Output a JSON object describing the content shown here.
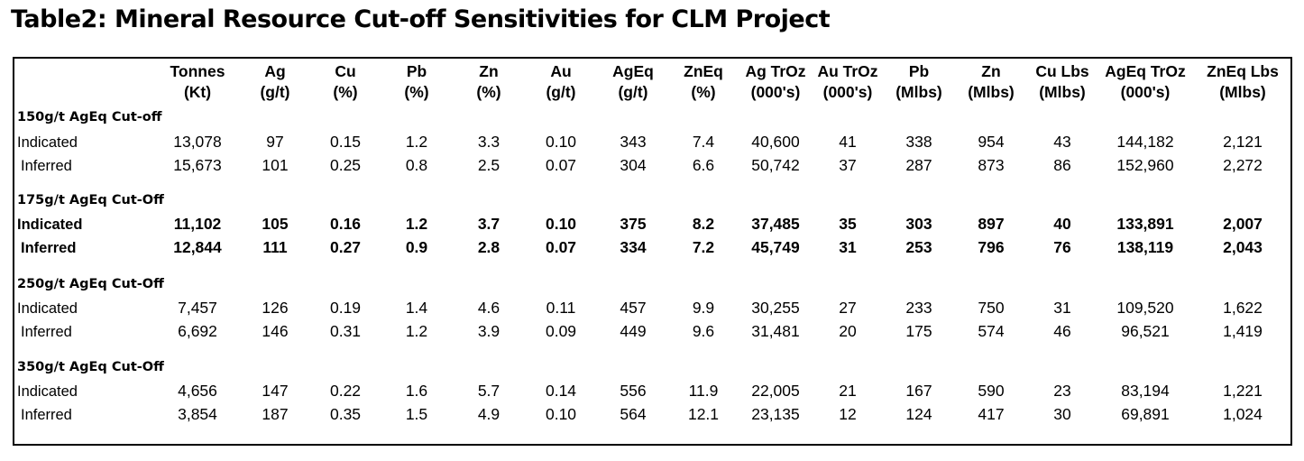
{
  "title": "Table2: Mineral Resource Cut-off Sensitivities for CLM Project",
  "columns": [
    {
      "name": "Tonnes",
      "unit": "(Kt)"
    },
    {
      "name": "Ag",
      "unit": "(g/t)"
    },
    {
      "name": "Cu",
      "unit": "(%)"
    },
    {
      "name": "Pb",
      "unit": "(%)"
    },
    {
      "name": "Zn",
      "unit": "(%)"
    },
    {
      "name": "Au",
      "unit": "(g/t)"
    },
    {
      "name": "AgEq",
      "unit": "(g/t)"
    },
    {
      "name": "ZnEq",
      "unit": "(%)"
    },
    {
      "name": "Ag TrOz",
      "unit": "(000's)"
    },
    {
      "name": "Au TrOz",
      "unit": "(000's)"
    },
    {
      "name": "Pb",
      "unit": "(Mlbs)"
    },
    {
      "name": "Zn",
      "unit": "(Mlbs)"
    },
    {
      "name": "Cu Lbs",
      "unit": "(Mlbs)"
    },
    {
      "name": "AgEq TrOz",
      "unit": "(000's)"
    },
    {
      "name": "ZnEq Lbs",
      "unit": "(Mlbs)"
    }
  ],
  "sections": [
    {
      "label": "150g/t AgEq Cut-off",
      "bold": false,
      "rows": [
        {
          "label": "Indicated",
          "values": [
            "13,078",
            "97",
            "0.15",
            "1.2",
            "3.3",
            "0.10",
            "343",
            "7.4",
            "40,600",
            "41",
            "338",
            "954",
            "43",
            "144,182",
            "2,121"
          ]
        },
        {
          "label": "Inferred",
          "values": [
            "15,673",
            "101",
            "0.25",
            "0.8",
            "2.5",
            "0.07",
            "304",
            "6.6",
            "50,742",
            "37",
            "287",
            "873",
            "86",
            "152,960",
            "2,272"
          ]
        }
      ]
    },
    {
      "label": "175g/t AgEq Cut-Off",
      "bold": true,
      "rows": [
        {
          "label": "Indicated",
          "values": [
            "11,102",
            "105",
            "0.16",
            "1.2",
            "3.7",
            "0.10",
            "375",
            "8.2",
            "37,485",
            "35",
            "303",
            "897",
            "40",
            "133,891",
            "2,007"
          ]
        },
        {
          "label": "Inferred",
          "values": [
            "12,844",
            "111",
            "0.27",
            "0.9",
            "2.8",
            "0.07",
            "334",
            "7.2",
            "45,749",
            "31",
            "253",
            "796",
            "76",
            "138,119",
            "2,043"
          ]
        }
      ]
    },
    {
      "label": "250g/t AgEq Cut-Off",
      "bold": false,
      "rows": [
        {
          "label": "Indicated",
          "values": [
            "7,457",
            "126",
            "0.19",
            "1.4",
            "4.6",
            "0.11",
            "457",
            "9.9",
            "30,255",
            "27",
            "233",
            "750",
            "31",
            "109,520",
            "1,622"
          ]
        },
        {
          "label": "Inferred",
          "values": [
            "6,692",
            "146",
            "0.31",
            "1.2",
            "3.9",
            "0.09",
            "449",
            "9.6",
            "31,481",
            "20",
            "175",
            "574",
            "46",
            "96,521",
            "1,419"
          ]
        }
      ]
    },
    {
      "label": "350g/t AgEq Cut-Off",
      "bold": false,
      "rows": [
        {
          "label": "Indicated",
          "values": [
            "4,656",
            "147",
            "0.22",
            "1.6",
            "5.7",
            "0.14",
            "556",
            "11.9",
            "22,005",
            "21",
            "167",
            "590",
            "23",
            "83,194",
            "1,221"
          ]
        },
        {
          "label": "Inferred",
          "values": [
            "3,854",
            "187",
            "0.35",
            "1.5",
            "4.9",
            "0.10",
            "564",
            "12.1",
            "23,135",
            "12",
            "124",
            "417",
            "30",
            "69,891",
            "1,024"
          ]
        }
      ]
    }
  ]
}
